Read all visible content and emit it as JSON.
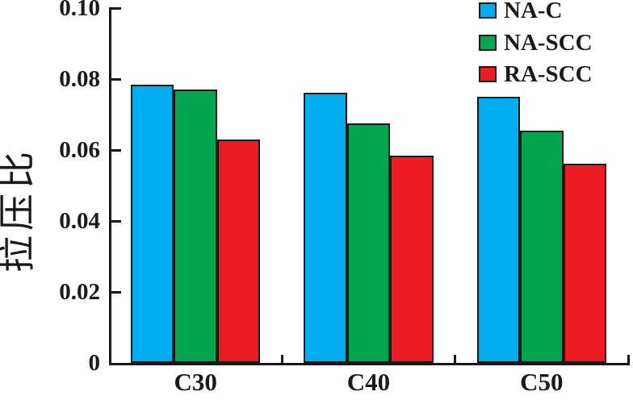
{
  "figure": {
    "background": "#ffffff"
  },
  "chart_data": {
    "type": "bar",
    "title": "",
    "xlabel": "",
    "ylabel": "拉压比",
    "categories": [
      "C30",
      "C40",
      "C50"
    ],
    "series": [
      {
        "name": "NA-C",
        "color": "#00AEEF",
        "values": [
          0.0785,
          0.0761,
          0.075
        ]
      },
      {
        "name": "NA-SCC",
        "color": "#00A651",
        "values": [
          0.077,
          0.0674,
          0.0655
        ]
      },
      {
        "name": "RA-SCC",
        "color": "#ED1C24",
        "values": [
          0.063,
          0.0584,
          0.0561
        ]
      }
    ],
    "ylim": [
      0,
      0.1
    ],
    "y_ticks": [
      {
        "value": 0,
        "label": "0"
      },
      {
        "value": 0.02,
        "label": "0.02"
      },
      {
        "value": 0.04,
        "label": "0.04"
      },
      {
        "value": 0.06,
        "label": "0.06"
      },
      {
        "value": 0.08,
        "label": "0.08"
      },
      {
        "value": 0.1,
        "label": "0.10"
      }
    ],
    "grid": false,
    "legend_position": "top-right",
    "axis_color": "#1a1a1a",
    "bar_border_color": "#1a1a1a"
  }
}
